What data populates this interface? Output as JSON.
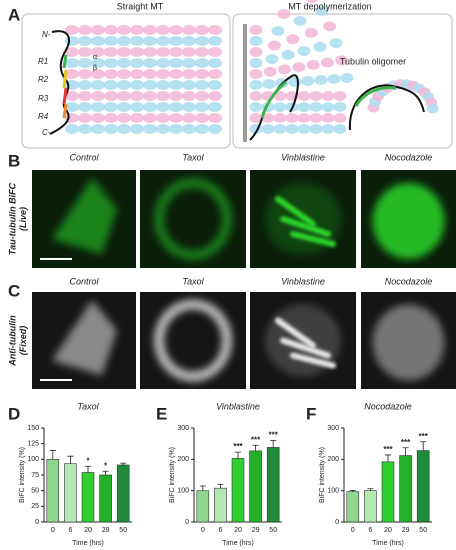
{
  "panel_labels": [
    "A",
    "B",
    "C",
    "D",
    "E",
    "F"
  ],
  "schematic": {
    "titles": [
      "Straight MT",
      "MT depolymerization"
    ],
    "oligomer_label": "Tubulin oligomer",
    "terminals": [
      "N-",
      "C-"
    ],
    "repeats": [
      "R1",
      "R2",
      "R3",
      "R4"
    ],
    "subunits": [
      "α",
      "β"
    ]
  },
  "images": {
    "columns": [
      "Control",
      "Taxol",
      "Vinblastine",
      "Nocodazole"
    ],
    "rows": [
      {
        "label": "Tau-tubulin BiFC",
        "sublabel": "(Live)"
      },
      {
        "label": "Anti-tubulin",
        "sublabel": "(Fixed)"
      }
    ]
  },
  "chart_data": [
    {
      "type": "bar",
      "title": "Taxol",
      "y_label": "BiFC intensity (%)",
      "x_label": "Time (hrs)",
      "categories": [
        "0",
        "6",
        "20",
        "29",
        "50"
      ],
      "values": [
        100,
        93,
        79,
        75,
        91
      ],
      "errors": [
        14,
        12,
        10,
        6,
        3
      ],
      "significance": [
        null,
        null,
        "*",
        "*",
        null
      ],
      "colors": [
        "#8fd68f",
        "#b3e8b3",
        "#2fcf2f",
        "#25b02a",
        "#1e8c3a"
      ],
      "ylim": [
        0,
        150
      ],
      "yticks": [
        0,
        25,
        50,
        75,
        100,
        125,
        150
      ]
    },
    {
      "type": "bar",
      "title": "Vinblastine",
      "y_label": "BiFC intensity (%)",
      "x_label": "Time (hrs)",
      "categories": [
        "0",
        "6",
        "20",
        "29",
        "50"
      ],
      "values": [
        100,
        108,
        203,
        227,
        238
      ],
      "errors": [
        15,
        12,
        20,
        18,
        22
      ],
      "significance": [
        null,
        null,
        "***",
        "***",
        "***"
      ],
      "colors": [
        "#8fd68f",
        "#b3e8b3",
        "#2fcf2f",
        "#25b02a",
        "#1e8c3a"
      ],
      "ylim": [
        0,
        300
      ],
      "yticks": [
        0,
        100,
        200,
        300
      ]
    },
    {
      "type": "bar",
      "title": "Nocodazole",
      "y_label": "BiFC intensity (%)",
      "x_label": "Time (hrs)",
      "categories": [
        "0",
        "6",
        "20",
        "29",
        "50"
      ],
      "values": [
        97,
        100,
        192,
        212,
        228
      ],
      "errors": [
        4,
        6,
        22,
        25,
        28
      ],
      "significance": [
        null,
        null,
        "***",
        "***",
        "***"
      ],
      "colors": [
        "#8fd68f",
        "#b3e8b3",
        "#2fcf2f",
        "#25b02a",
        "#1e8c3a"
      ],
      "ylim": [
        0,
        300
      ],
      "yticks": [
        0,
        100,
        200,
        300
      ]
    }
  ]
}
